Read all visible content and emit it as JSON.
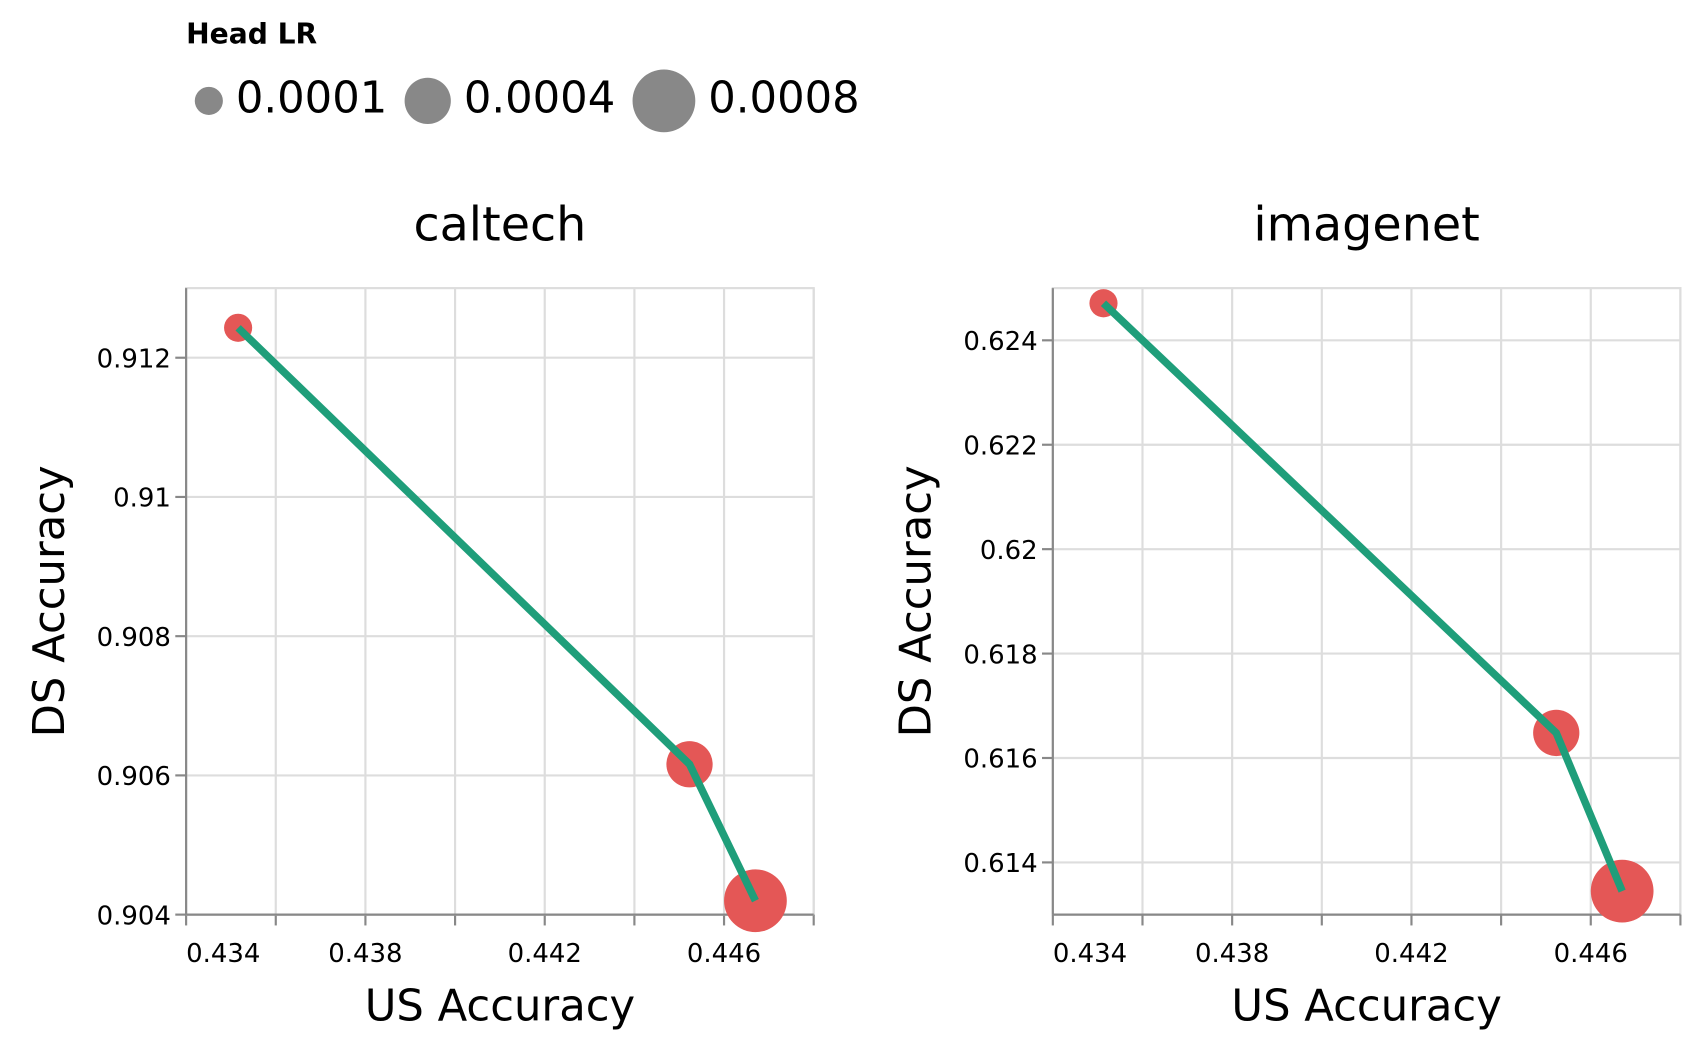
{
  "legend": {
    "title": "Head LR",
    "values": [
      0.0001,
      0.0004,
      0.0008
    ],
    "color": "#888888"
  },
  "chart_data": [
    {
      "type": "scatter",
      "title": "caltech",
      "x_label": "US Accuracy",
      "y_label": "DS Accuracy",
      "x": [
        0.43516,
        0.44523,
        0.4467
      ],
      "y": [
        0.91243,
        0.90616,
        0.9042
      ],
      "size": [
        0.0001,
        0.0004,
        0.0008
      ],
      "point_color": "#e45756",
      "line_color": "#1f9e7a",
      "xlim": [
        0.434,
        0.448
      ],
      "xticks": [
        0.434,
        0.438,
        0.442,
        0.446
      ],
      "xgrid": [
        0.434,
        0.436,
        0.438,
        0.44,
        0.442,
        0.444,
        0.446,
        0.448
      ],
      "ylim": [
        0.904,
        0.913
      ],
      "yticks": [
        0.904,
        0.906,
        0.908,
        0.91,
        0.912
      ],
      "grid": true
    },
    {
      "type": "scatter",
      "title": "imagenet",
      "x_label": "US Accuracy",
      "y_label": "DS Accuracy",
      "x": [
        0.43513,
        0.44523,
        0.4467
      ],
      "y": [
        0.62471,
        0.61648,
        0.61345
      ],
      "size": [
        0.0001,
        0.0004,
        0.0008
      ],
      "point_color": "#e45756",
      "line_color": "#1f9e7a",
      "xlim": [
        0.434,
        0.448
      ],
      "xticks": [
        0.434,
        0.438,
        0.442,
        0.446
      ],
      "xgrid": [
        0.434,
        0.436,
        0.438,
        0.44,
        0.442,
        0.444,
        0.446,
        0.448
      ],
      "ylim": [
        0.613,
        0.625
      ],
      "yticks": [
        0.614,
        0.616,
        0.618,
        0.62,
        0.622,
        0.624
      ],
      "grid": true
    }
  ]
}
